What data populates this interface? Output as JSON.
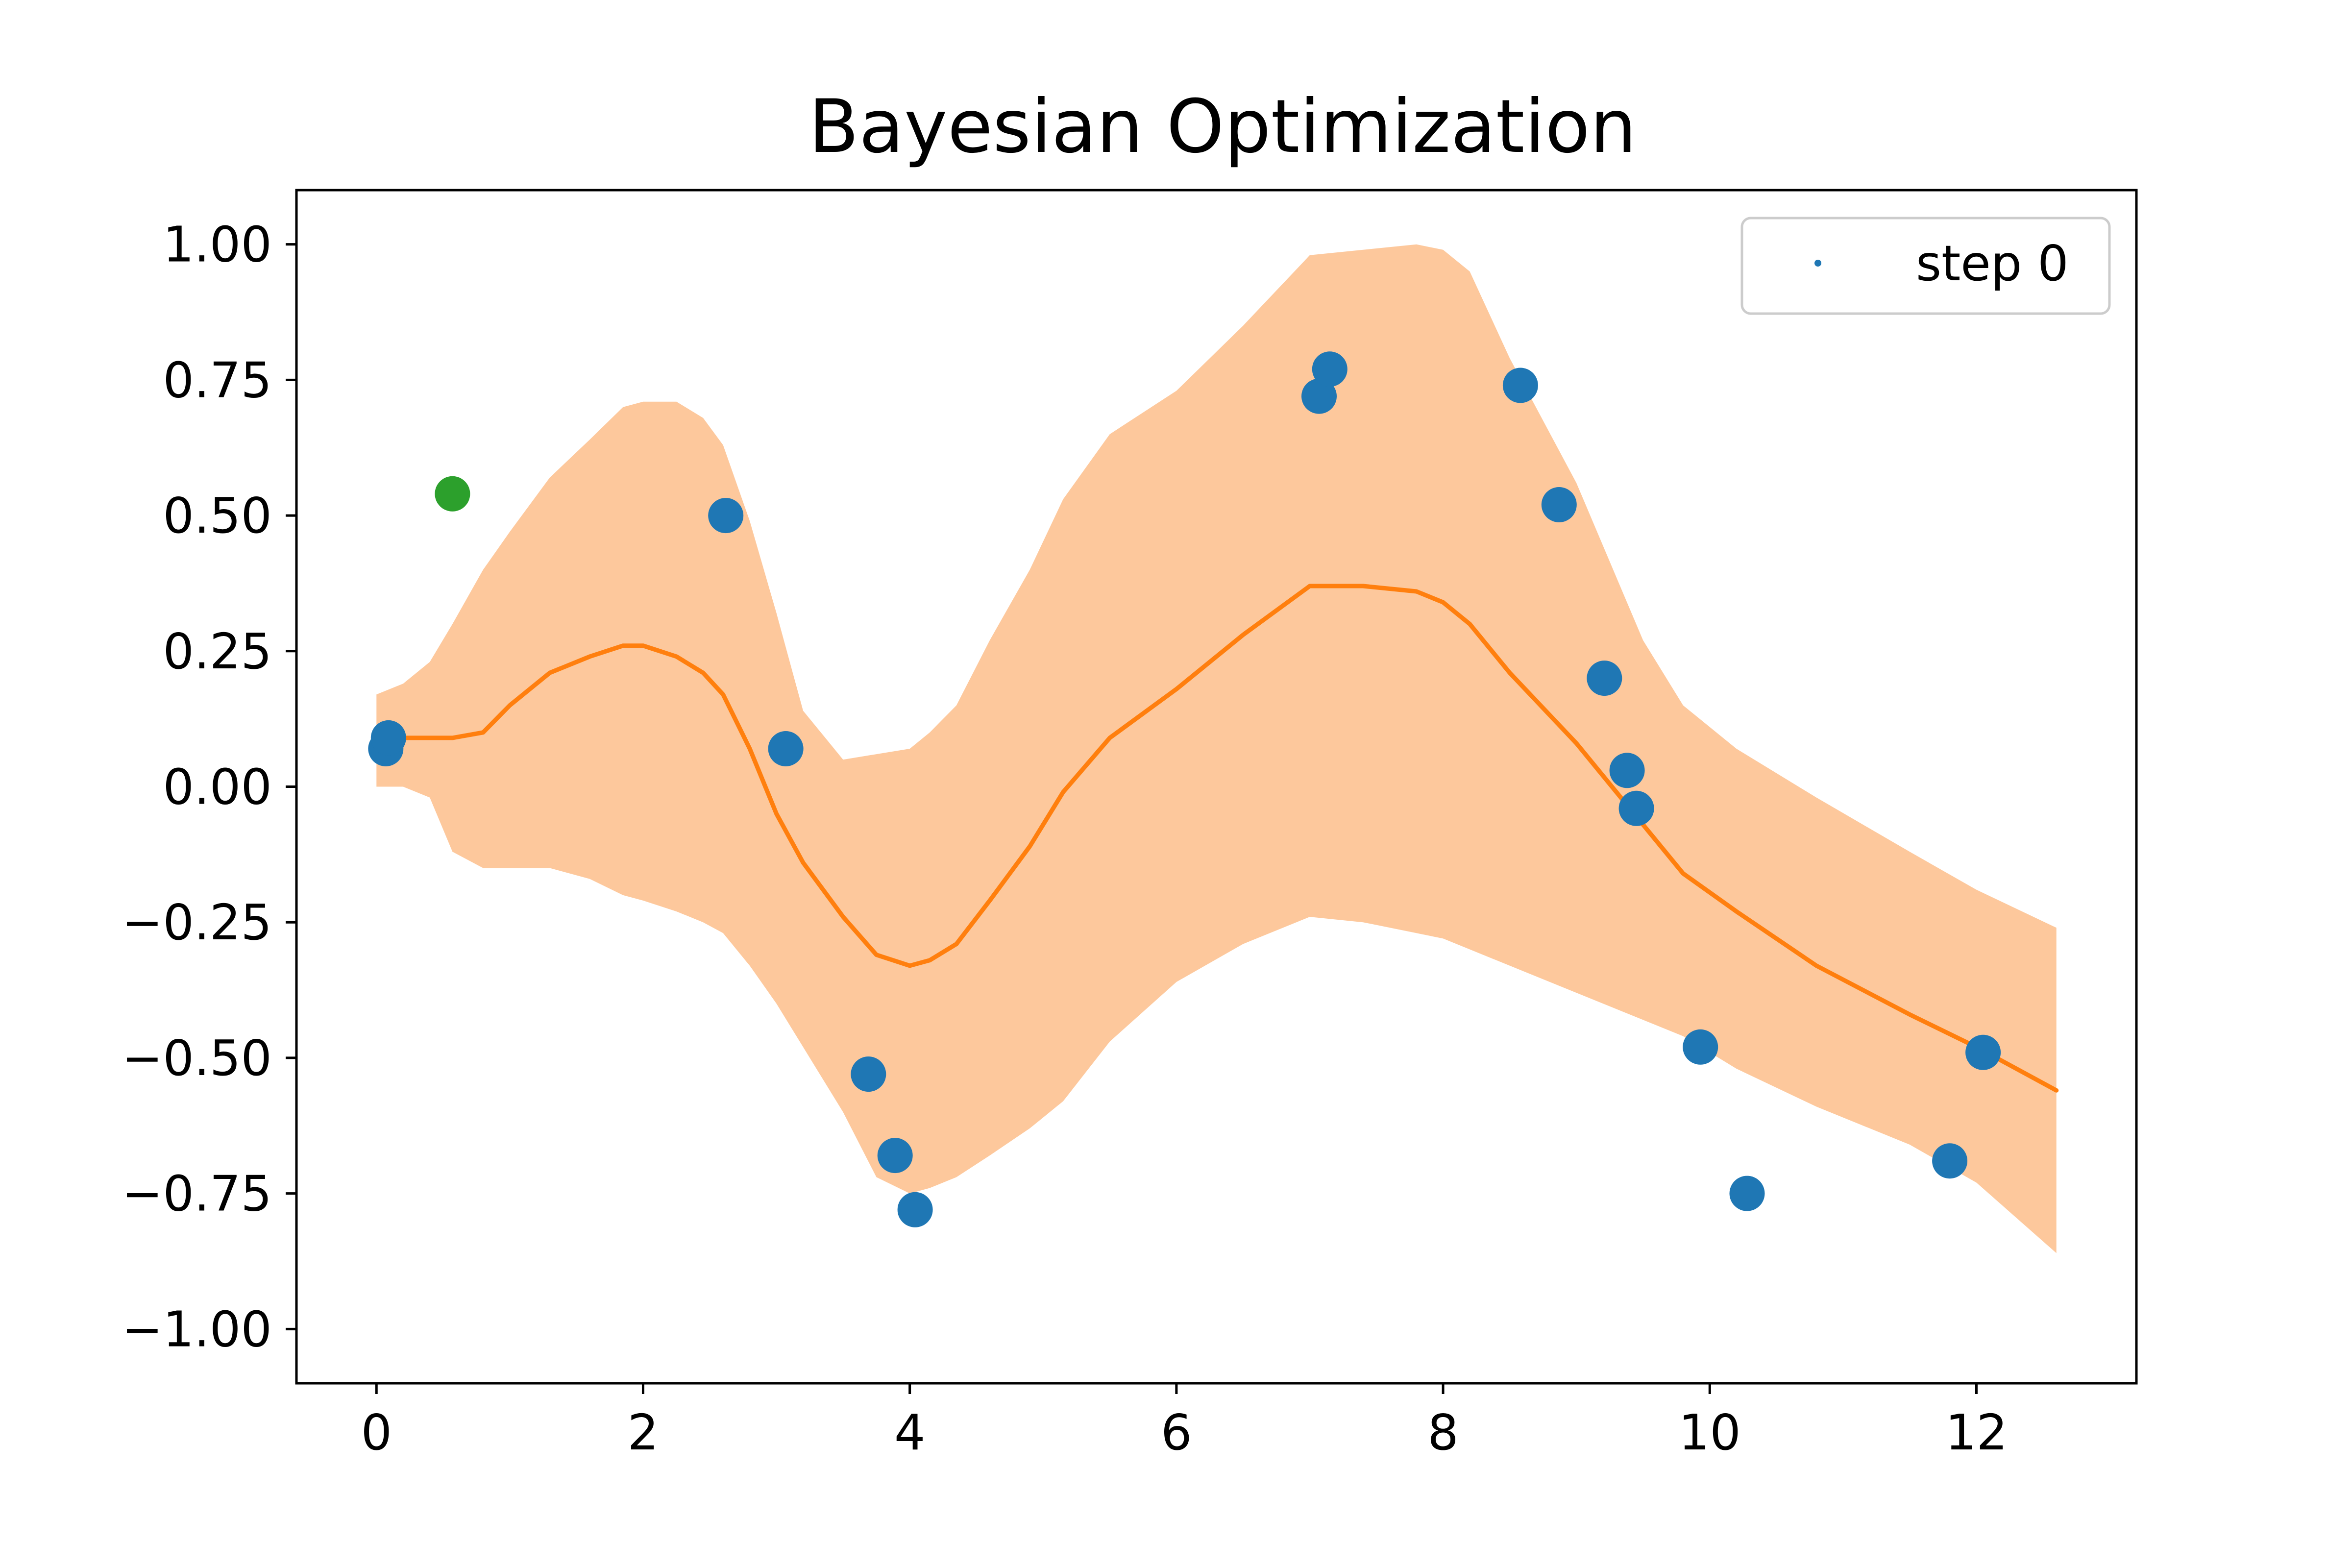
{
  "chart_data": {
    "type": "scatter",
    "title": "Bayesian Optimization",
    "xlabel": "",
    "ylabel": "",
    "xlim": [
      -0.6,
      13.2
    ],
    "ylim": [
      -1.1,
      1.1
    ],
    "xticks": [
      0,
      2,
      4,
      6,
      8,
      10,
      12
    ],
    "yticks": [
      -1.0,
      -0.75,
      -0.5,
      -0.25,
      0.0,
      0.25,
      0.5,
      0.75,
      1.0
    ],
    "xtick_labels": [
      "0",
      "2",
      "4",
      "6",
      "8",
      "10",
      "12"
    ],
    "ytick_labels": [
      "−1.00",
      "−0.75",
      "−0.50",
      "−0.25",
      "0.00",
      "0.25",
      "0.50",
      "0.75",
      "1.00"
    ],
    "grid": false,
    "legend_position": "upper right",
    "legend_entries": [
      "step 0"
    ],
    "colors": {
      "points": "#1f77b4",
      "current_point": "#2ca02c",
      "mean_line": "#ff7f0e",
      "confidence_band": "#fdc89c"
    },
    "series": [
      {
        "kind": "scatter",
        "color": "#1f77b4",
        "points": [
          [
            0.07,
            0.07
          ],
          [
            0.09,
            0.09
          ],
          [
            2.62,
            0.5
          ],
          [
            3.07,
            0.07
          ],
          [
            3.69,
            -0.53
          ],
          [
            3.89,
            -0.68
          ],
          [
            4.04,
            -0.78
          ],
          [
            7.07,
            0.72
          ],
          [
            7.15,
            0.77
          ],
          [
            8.58,
            0.74
          ],
          [
            8.87,
            0.52
          ],
          [
            9.21,
            0.2
          ],
          [
            9.38,
            0.03
          ],
          [
            9.45,
            -0.04
          ],
          [
            9.93,
            -0.48
          ],
          [
            10.28,
            -0.75
          ],
          [
            11.8,
            -0.69
          ],
          [
            12.05,
            -0.49
          ]
        ]
      },
      {
        "kind": "scatter",
        "color": "#2ca02c",
        "points": [
          [
            0.57,
            0.54
          ]
        ]
      },
      {
        "kind": "line",
        "color": "#ff7f0e",
        "x": [
          0.0,
          0.2,
          0.4,
          0.57,
          0.8,
          1.0,
          1.3,
          1.6,
          1.85,
          2.0,
          2.25,
          2.45,
          2.6,
          2.8,
          3.0,
          3.2,
          3.5,
          3.75,
          4.0,
          4.15,
          4.35,
          4.6,
          4.9,
          5.15,
          5.5,
          6.0,
          6.5,
          7.0,
          7.4,
          7.8,
          8.0,
          8.2,
          8.5,
          9.0,
          9.5,
          9.8,
          10.2,
          10.8,
          11.5,
          12.0,
          12.6
        ],
        "y": [
          0.08,
          0.09,
          0.09,
          0.09,
          0.1,
          0.15,
          0.21,
          0.24,
          0.26,
          0.26,
          0.24,
          0.21,
          0.17,
          0.07,
          -0.05,
          -0.14,
          -0.24,
          -0.31,
          -0.33,
          -0.32,
          -0.29,
          -0.21,
          -0.11,
          -0.01,
          0.09,
          0.18,
          0.28,
          0.37,
          0.37,
          0.36,
          0.34,
          0.3,
          0.21,
          0.08,
          -0.07,
          -0.16,
          -0.23,
          -0.33,
          -0.42,
          -0.48,
          -0.56
        ]
      },
      {
        "kind": "band",
        "color": "#fdc89c",
        "x": [
          0.0,
          0.2,
          0.4,
          0.57,
          0.8,
          1.0,
          1.3,
          1.6,
          1.85,
          2.0,
          2.25,
          2.45,
          2.6,
          2.8,
          3.0,
          3.2,
          3.5,
          3.75,
          4.0,
          4.15,
          4.35,
          4.6,
          4.9,
          5.15,
          5.5,
          6.0,
          6.5,
          7.0,
          7.4,
          7.8,
          8.0,
          8.2,
          8.5,
          9.0,
          9.5,
          9.8,
          10.2,
          10.8,
          11.5,
          12.0,
          12.6
        ],
        "upper": [
          0.17,
          0.19,
          0.23,
          0.3,
          0.4,
          0.47,
          0.57,
          0.64,
          0.7,
          0.71,
          0.71,
          0.68,
          0.63,
          0.49,
          0.32,
          0.14,
          0.05,
          0.06,
          0.07,
          0.1,
          0.15,
          0.27,
          0.4,
          0.53,
          0.65,
          0.73,
          0.85,
          0.98,
          0.99,
          1.0,
          0.99,
          0.95,
          0.79,
          0.56,
          0.27,
          0.15,
          0.07,
          -0.02,
          -0.12,
          -0.19,
          -0.26
        ],
        "lower": [
          0.0,
          0.0,
          -0.02,
          -0.12,
          -0.15,
          -0.15,
          -0.15,
          -0.17,
          -0.2,
          -0.21,
          -0.23,
          -0.25,
          -0.27,
          -0.33,
          -0.4,
          -0.48,
          -0.6,
          -0.72,
          -0.75,
          -0.74,
          -0.72,
          -0.68,
          -0.63,
          -0.58,
          -0.47,
          -0.36,
          -0.29,
          -0.24,
          -0.25,
          -0.27,
          -0.28,
          -0.3,
          -0.33,
          -0.38,
          -0.43,
          -0.46,
          -0.52,
          -0.59,
          -0.66,
          -0.73,
          -0.86
        ]
      }
    ]
  }
}
